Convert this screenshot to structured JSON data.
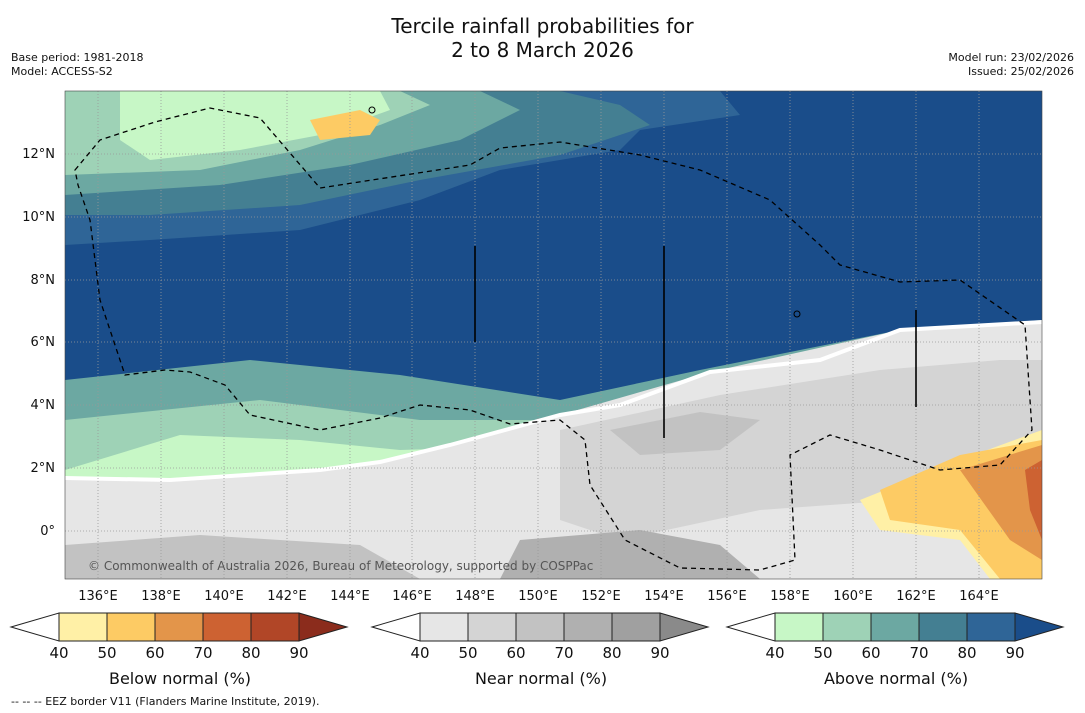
{
  "title": {
    "line1": "Tercile rainfall probabilities for",
    "line2": "2 to 8 March 2026"
  },
  "meta": {
    "base_period": "Base period: 1981-2018",
    "model": "Model: ACCESS-S2",
    "model_run": "Model run: 23/02/2026",
    "issued": "Issued: 25/02/2026"
  },
  "map": {
    "lon_labels": [
      "136°E",
      "138°E",
      "140°E",
      "142°E",
      "144°E",
      "146°E",
      "148°E",
      "150°E",
      "152°E",
      "154°E",
      "156°E",
      "158°E",
      "160°E",
      "162°E",
      "164°E"
    ],
    "lat_labels": [
      "12°N",
      "10°N",
      "8°N",
      "6°N",
      "4°N",
      "2°N",
      "0°"
    ],
    "copyright": "© Commonwealth of Australia 2026, Bureau of Meteorology, supported by COSPPac"
  },
  "colorbars": {
    "below": {
      "label": "Below normal (%)",
      "ticks": [
        "40",
        "50",
        "60",
        "70",
        "80",
        "90"
      ],
      "colors": [
        "#fff0a6",
        "#fdcb64",
        "#e3954a",
        "#cd6232",
        "#b14627",
        "#8b2c1c"
      ]
    },
    "near": {
      "label": "Near normal (%)",
      "ticks": [
        "40",
        "50",
        "60",
        "70",
        "80",
        "90"
      ],
      "colors": [
        "#e6e6e6",
        "#d4d4d4",
        "#c2c2c2",
        "#b0b0b0",
        "#a0a0a0",
        "#8a8a8a"
      ]
    },
    "above": {
      "label": "Above normal (%)",
      "ticks": [
        "40",
        "50",
        "60",
        "70",
        "80",
        "90"
      ],
      "colors": [
        "#c7f7c6",
        "#9ed2b6",
        "#6ca8a2",
        "#447f92",
        "#2f6597",
        "#1a4d8a"
      ]
    }
  },
  "footer": "--  --  -- EEZ border V11 (Flanders Marine Institute, 2019)."
}
